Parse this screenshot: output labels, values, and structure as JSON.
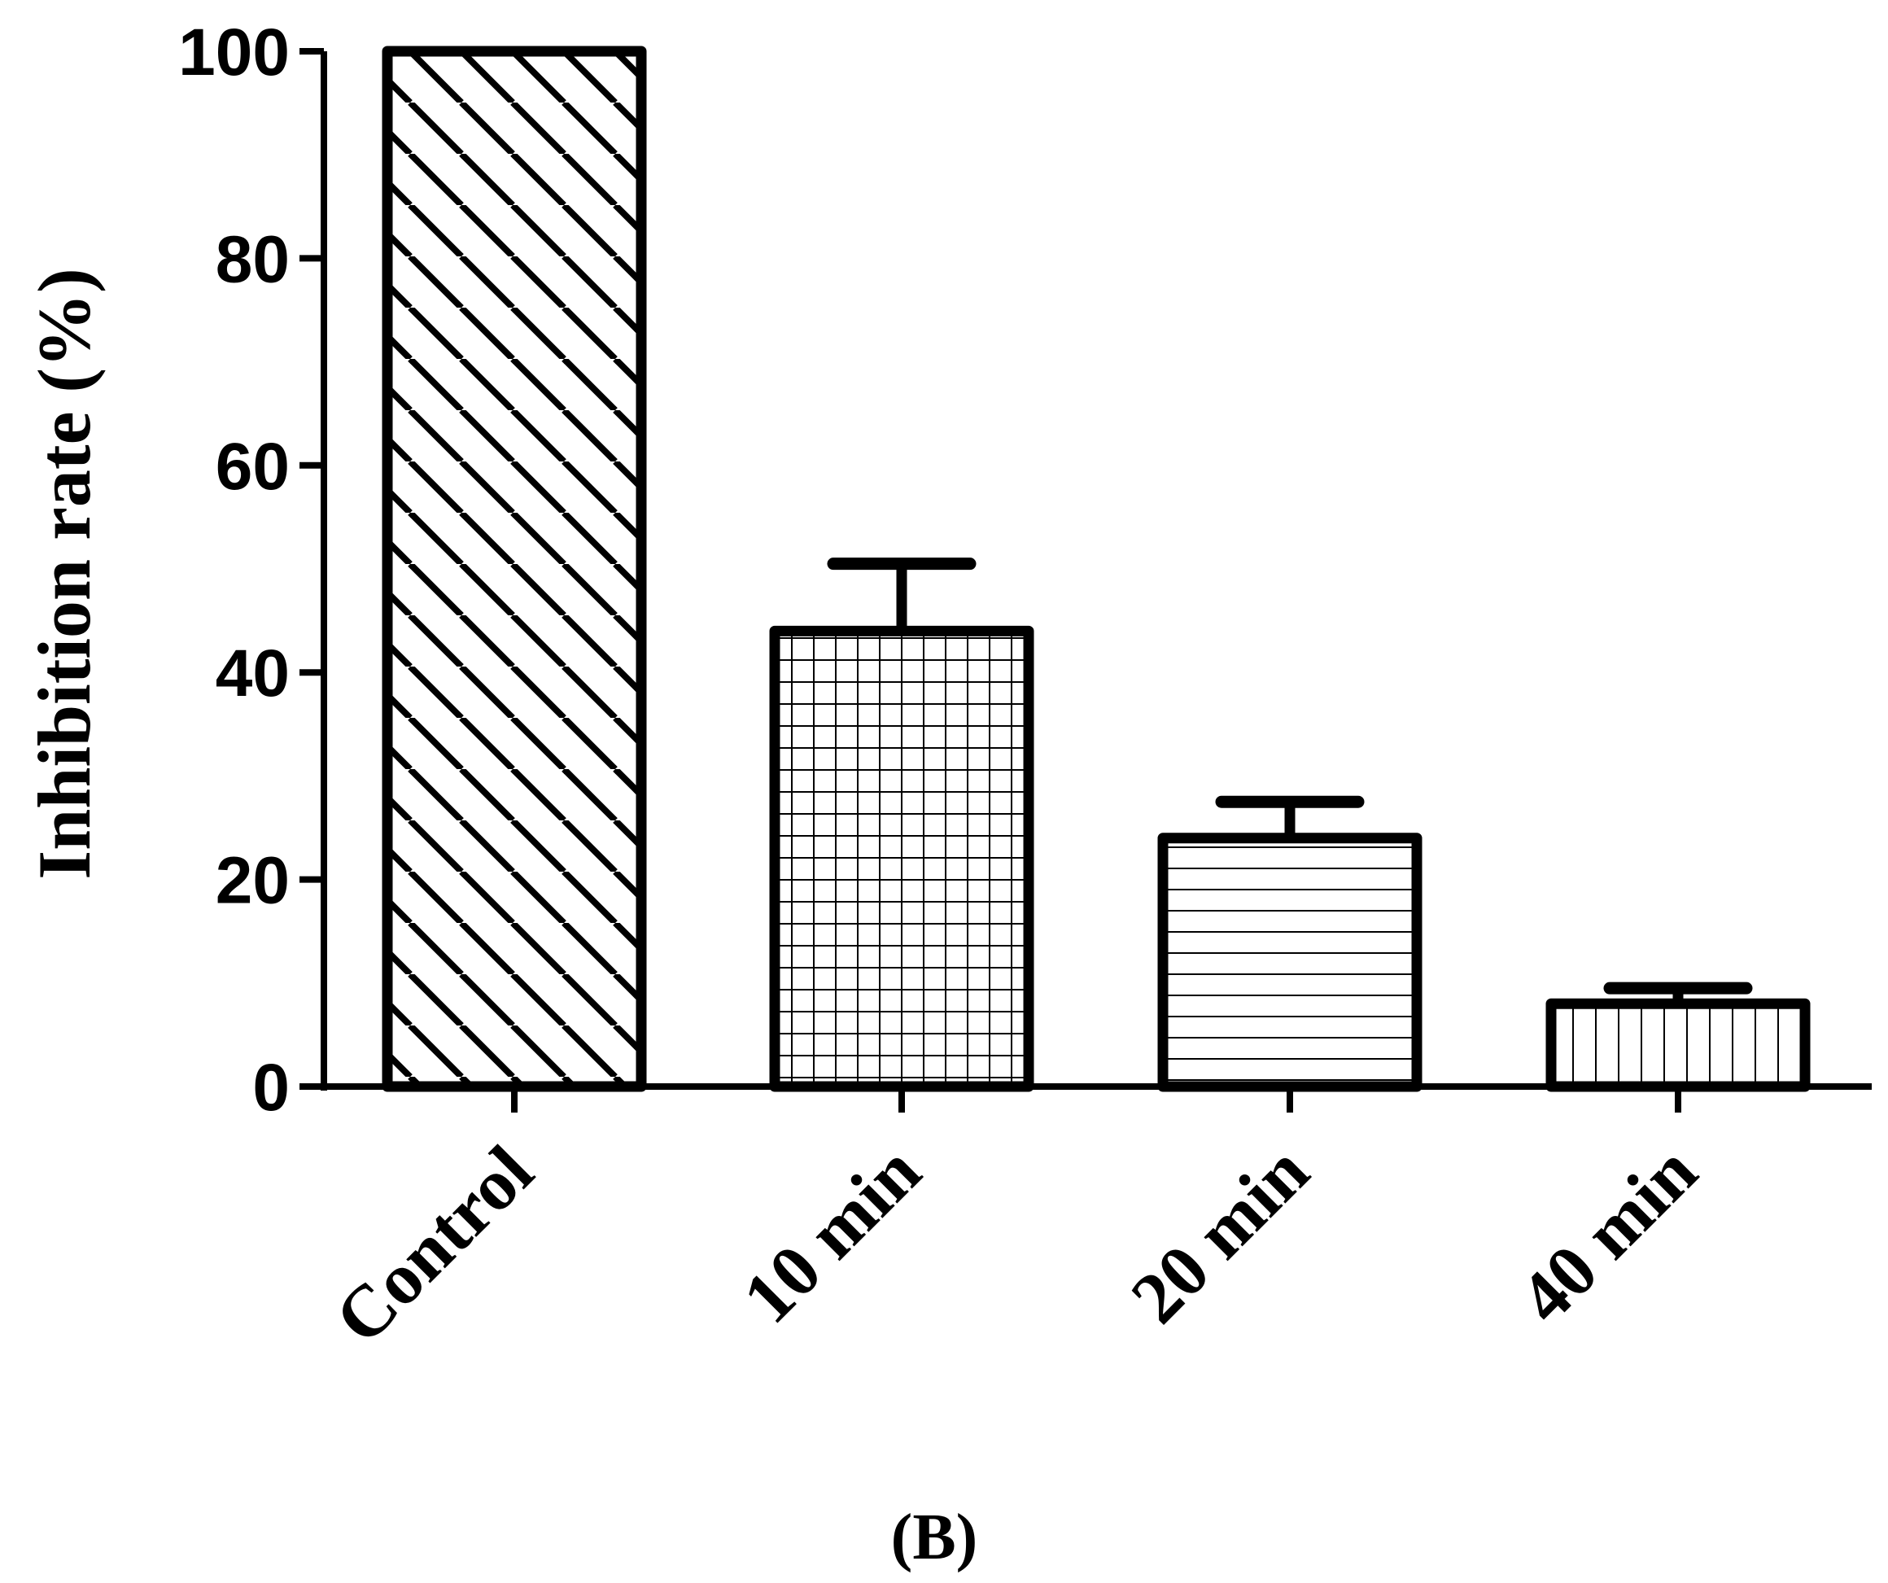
{
  "chart_data": {
    "type": "bar",
    "categories": [
      "Control",
      "10 min",
      "20 min",
      "40 min"
    ],
    "values": [
      100,
      44,
      24,
      8
    ],
    "errors": [
      0,
      6.5,
      3.5,
      1.5
    ],
    "patterns": [
      "diagonal",
      "grid",
      "horizontal",
      "vertical"
    ],
    "ylabel": "Inhibition rate (%)",
    "xlabel": "",
    "ylim": [
      0,
      100
    ],
    "yticks": [
      "0",
      "20",
      "40",
      "60",
      "80",
      "100"
    ],
    "panel_label": "(B)",
    "grid": false,
    "colors": {
      "stroke": "#000000",
      "fill": "#ffffff"
    }
  }
}
